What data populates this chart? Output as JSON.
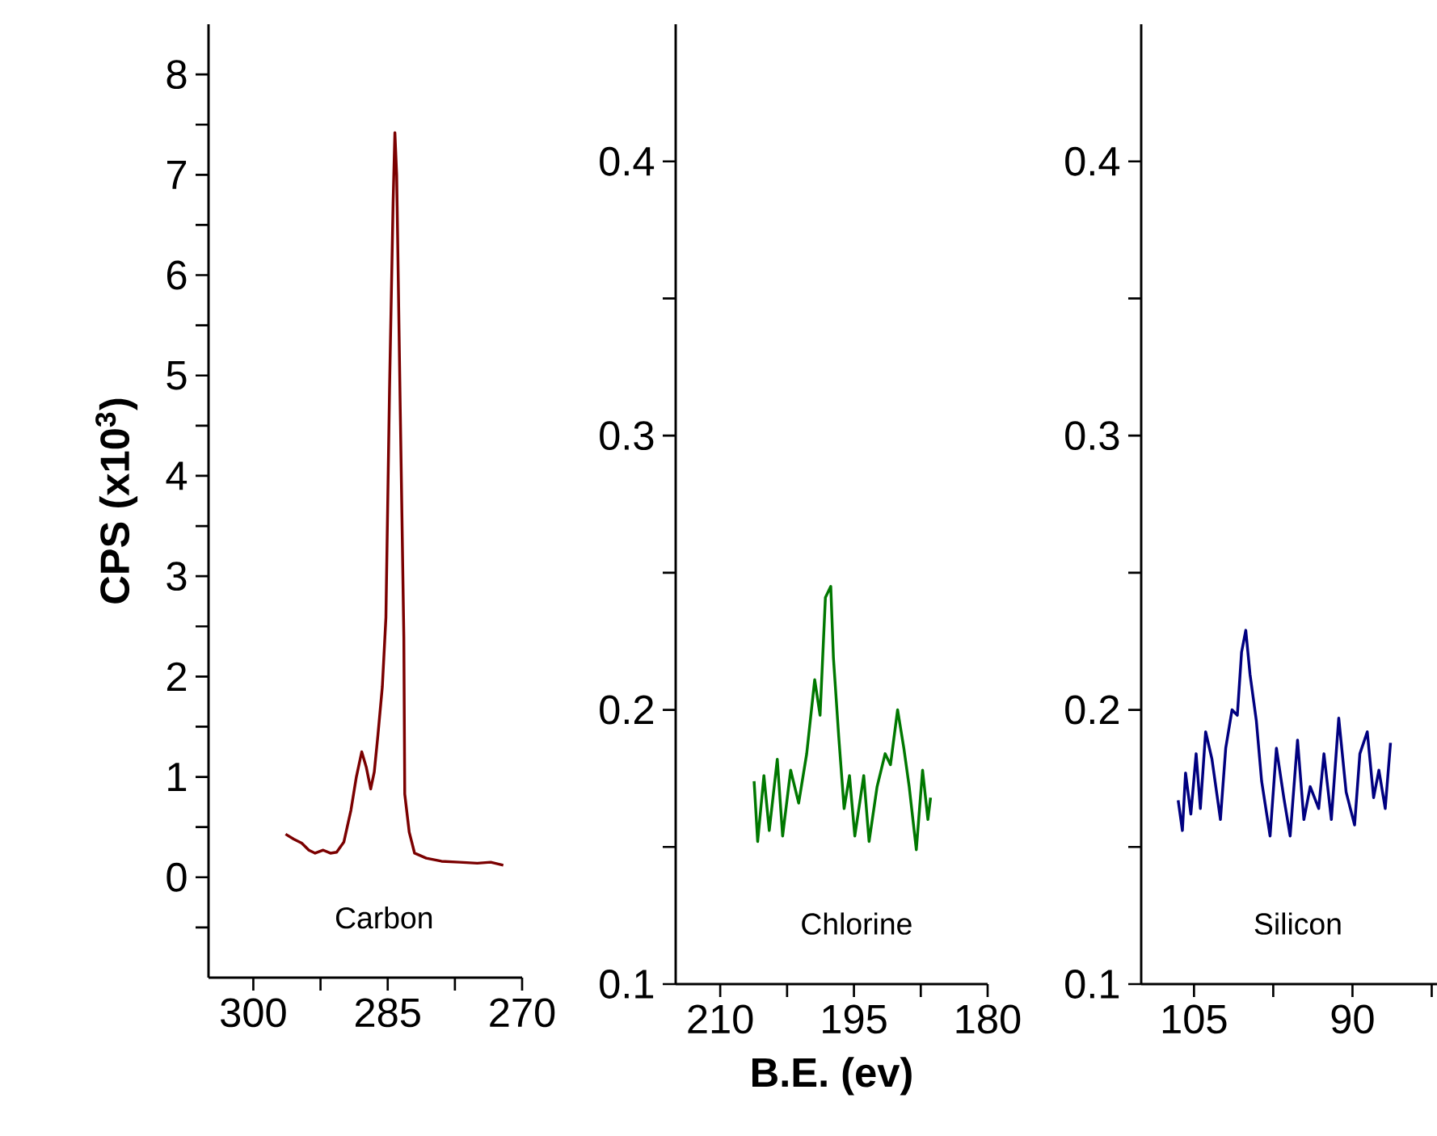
{
  "chart_data": [
    {
      "type": "line",
      "ylabel": "CPS (x10$^{3}$)",
      "xlim": [
        305,
        270
      ],
      "ylim": [
        -1,
        8.5
      ],
      "xticks": [
        300,
        {
          "value": 292.5,
          "label": null
        },
        285,
        {
          "value": 277.5,
          "label": null
        },
        270
      ],
      "yticks": [
        {
          "value": -0.5,
          "label": null
        },
        0,
        {
          "value": 0.5,
          "label": null
        },
        1,
        {
          "value": 1.5,
          "label": null
        },
        2,
        {
          "value": 2.5,
          "label": null
        },
        3,
        {
          "value": 3.5,
          "label": null
        },
        4,
        {
          "value": 4.5,
          "label": null
        },
        5,
        {
          "value": 5.5,
          "label": null
        },
        6,
        {
          "value": 6.5,
          "label": null
        },
        7,
        {
          "value": 7.5,
          "label": null
        },
        8
      ],
      "annotations": [
        "Carbon"
      ],
      "series": [
        {
          "color": "#7b0000",
          "x": [
            296.4,
            295.5,
            294.6,
            293.8,
            293.1,
            292.2,
            291.4,
            290.7,
            289.9,
            289.1,
            288.5,
            287.9,
            287.4,
            286.9,
            286.5,
            286.1,
            285.6,
            285.2,
            284.8,
            284.4,
            284.2,
            284.0,
            283.6,
            283.2,
            283.1,
            282.6,
            282.0,
            280.7,
            279.0,
            277.0,
            275.0,
            273.5,
            272.1
          ],
          "values": [
            0.43,
            0.38,
            0.34,
            0.27,
            0.24,
            0.27,
            0.24,
            0.25,
            0.35,
            0.67,
            1.0,
            1.25,
            1.1,
            0.88,
            1.05,
            1.41,
            1.9,
            2.59,
            4.85,
            6.72,
            7.42,
            7.0,
            4.66,
            2.39,
            0.83,
            0.45,
            0.24,
            0.19,
            0.16,
            0.15,
            0.14,
            0.15,
            0.12
          ]
        }
      ]
    },
    {
      "type": "line",
      "xlabel": "B.E. (ev)",
      "xlim": [
        215,
        180
      ],
      "ylim": [
        0.1,
        0.45
      ],
      "xticks": [
        210,
        {
          "value": 202.5,
          "label": null
        },
        195,
        {
          "value": 187.5,
          "label": null
        },
        180
      ],
      "yticks": [
        0.1,
        {
          "value": 0.15,
          "label": null
        },
        0.2,
        {
          "value": 0.25,
          "label": null
        },
        0.3,
        {
          "value": 0.35,
          "label": null
        },
        0.4
      ],
      "annotations": [
        "Chlorine"
      ],
      "series": [
        {
          "color": "#007800",
          "x": [
            206.2,
            205.8,
            205.1,
            204.5,
            203.6,
            203.0,
            202.1,
            201.2,
            200.3,
            199.4,
            198.8,
            198.2,
            197.6,
            197.3,
            196.7,
            196.1,
            195.5,
            194.9,
            193.9,
            193.3,
            192.4,
            191.5,
            190.9,
            190.1,
            189.4,
            188.8,
            188.0,
            187.3,
            186.7,
            186.4
          ],
          "values": [
            0.174,
            0.152,
            0.176,
            0.156,
            0.182,
            0.154,
            0.178,
            0.166,
            0.184,
            0.211,
            0.198,
            0.241,
            0.245,
            0.219,
            0.19,
            0.164,
            0.176,
            0.154,
            0.176,
            0.152,
            0.172,
            0.184,
            0.18,
            0.2,
            0.186,
            0.172,
            0.149,
            0.178,
            0.16,
            0.168
          ]
        }
      ]
    },
    {
      "type": "line",
      "xlim": [
        110,
        82
      ],
      "ylim": [
        0.1,
        0.45
      ],
      "xticks": [
        105,
        {
          "value": 97.5,
          "label": null
        },
        90,
        {
          "value": 82.5,
          "label": null
        }
      ],
      "yticks": [
        0.1,
        {
          "value": 0.15,
          "label": null
        },
        0.2,
        {
          "value": 0.25,
          "label": null
        },
        0.3,
        {
          "value": 0.35,
          "label": null
        },
        0.4
      ],
      "annotations": [
        "Silicon"
      ],
      "series": [
        {
          "color": "#000080",
          "x": [
            106.5,
            106.1,
            105.8,
            105.3,
            104.8,
            104.4,
            103.9,
            103.3,
            102.5,
            102.0,
            101.4,
            100.9,
            100.5,
            100.1,
            99.7,
            99.1,
            98.6,
            97.8,
            97.2,
            96.5,
            95.9,
            95.2,
            94.6,
            94.0,
            93.2,
            92.7,
            92.0,
            91.3,
            90.6,
            89.8,
            89.3,
            88.6,
            88.0,
            87.5,
            86.9,
            86.4
          ],
          "values": [
            0.167,
            0.156,
            0.177,
            0.162,
            0.184,
            0.164,
            0.192,
            0.182,
            0.16,
            0.186,
            0.2,
            0.198,
            0.221,
            0.229,
            0.213,
            0.196,
            0.174,
            0.154,
            0.186,
            0.168,
            0.154,
            0.189,
            0.16,
            0.172,
            0.164,
            0.184,
            0.16,
            0.197,
            0.17,
            0.158,
            0.184,
            0.192,
            0.168,
            0.178,
            0.164,
            0.188
          ]
        }
      ]
    }
  ]
}
